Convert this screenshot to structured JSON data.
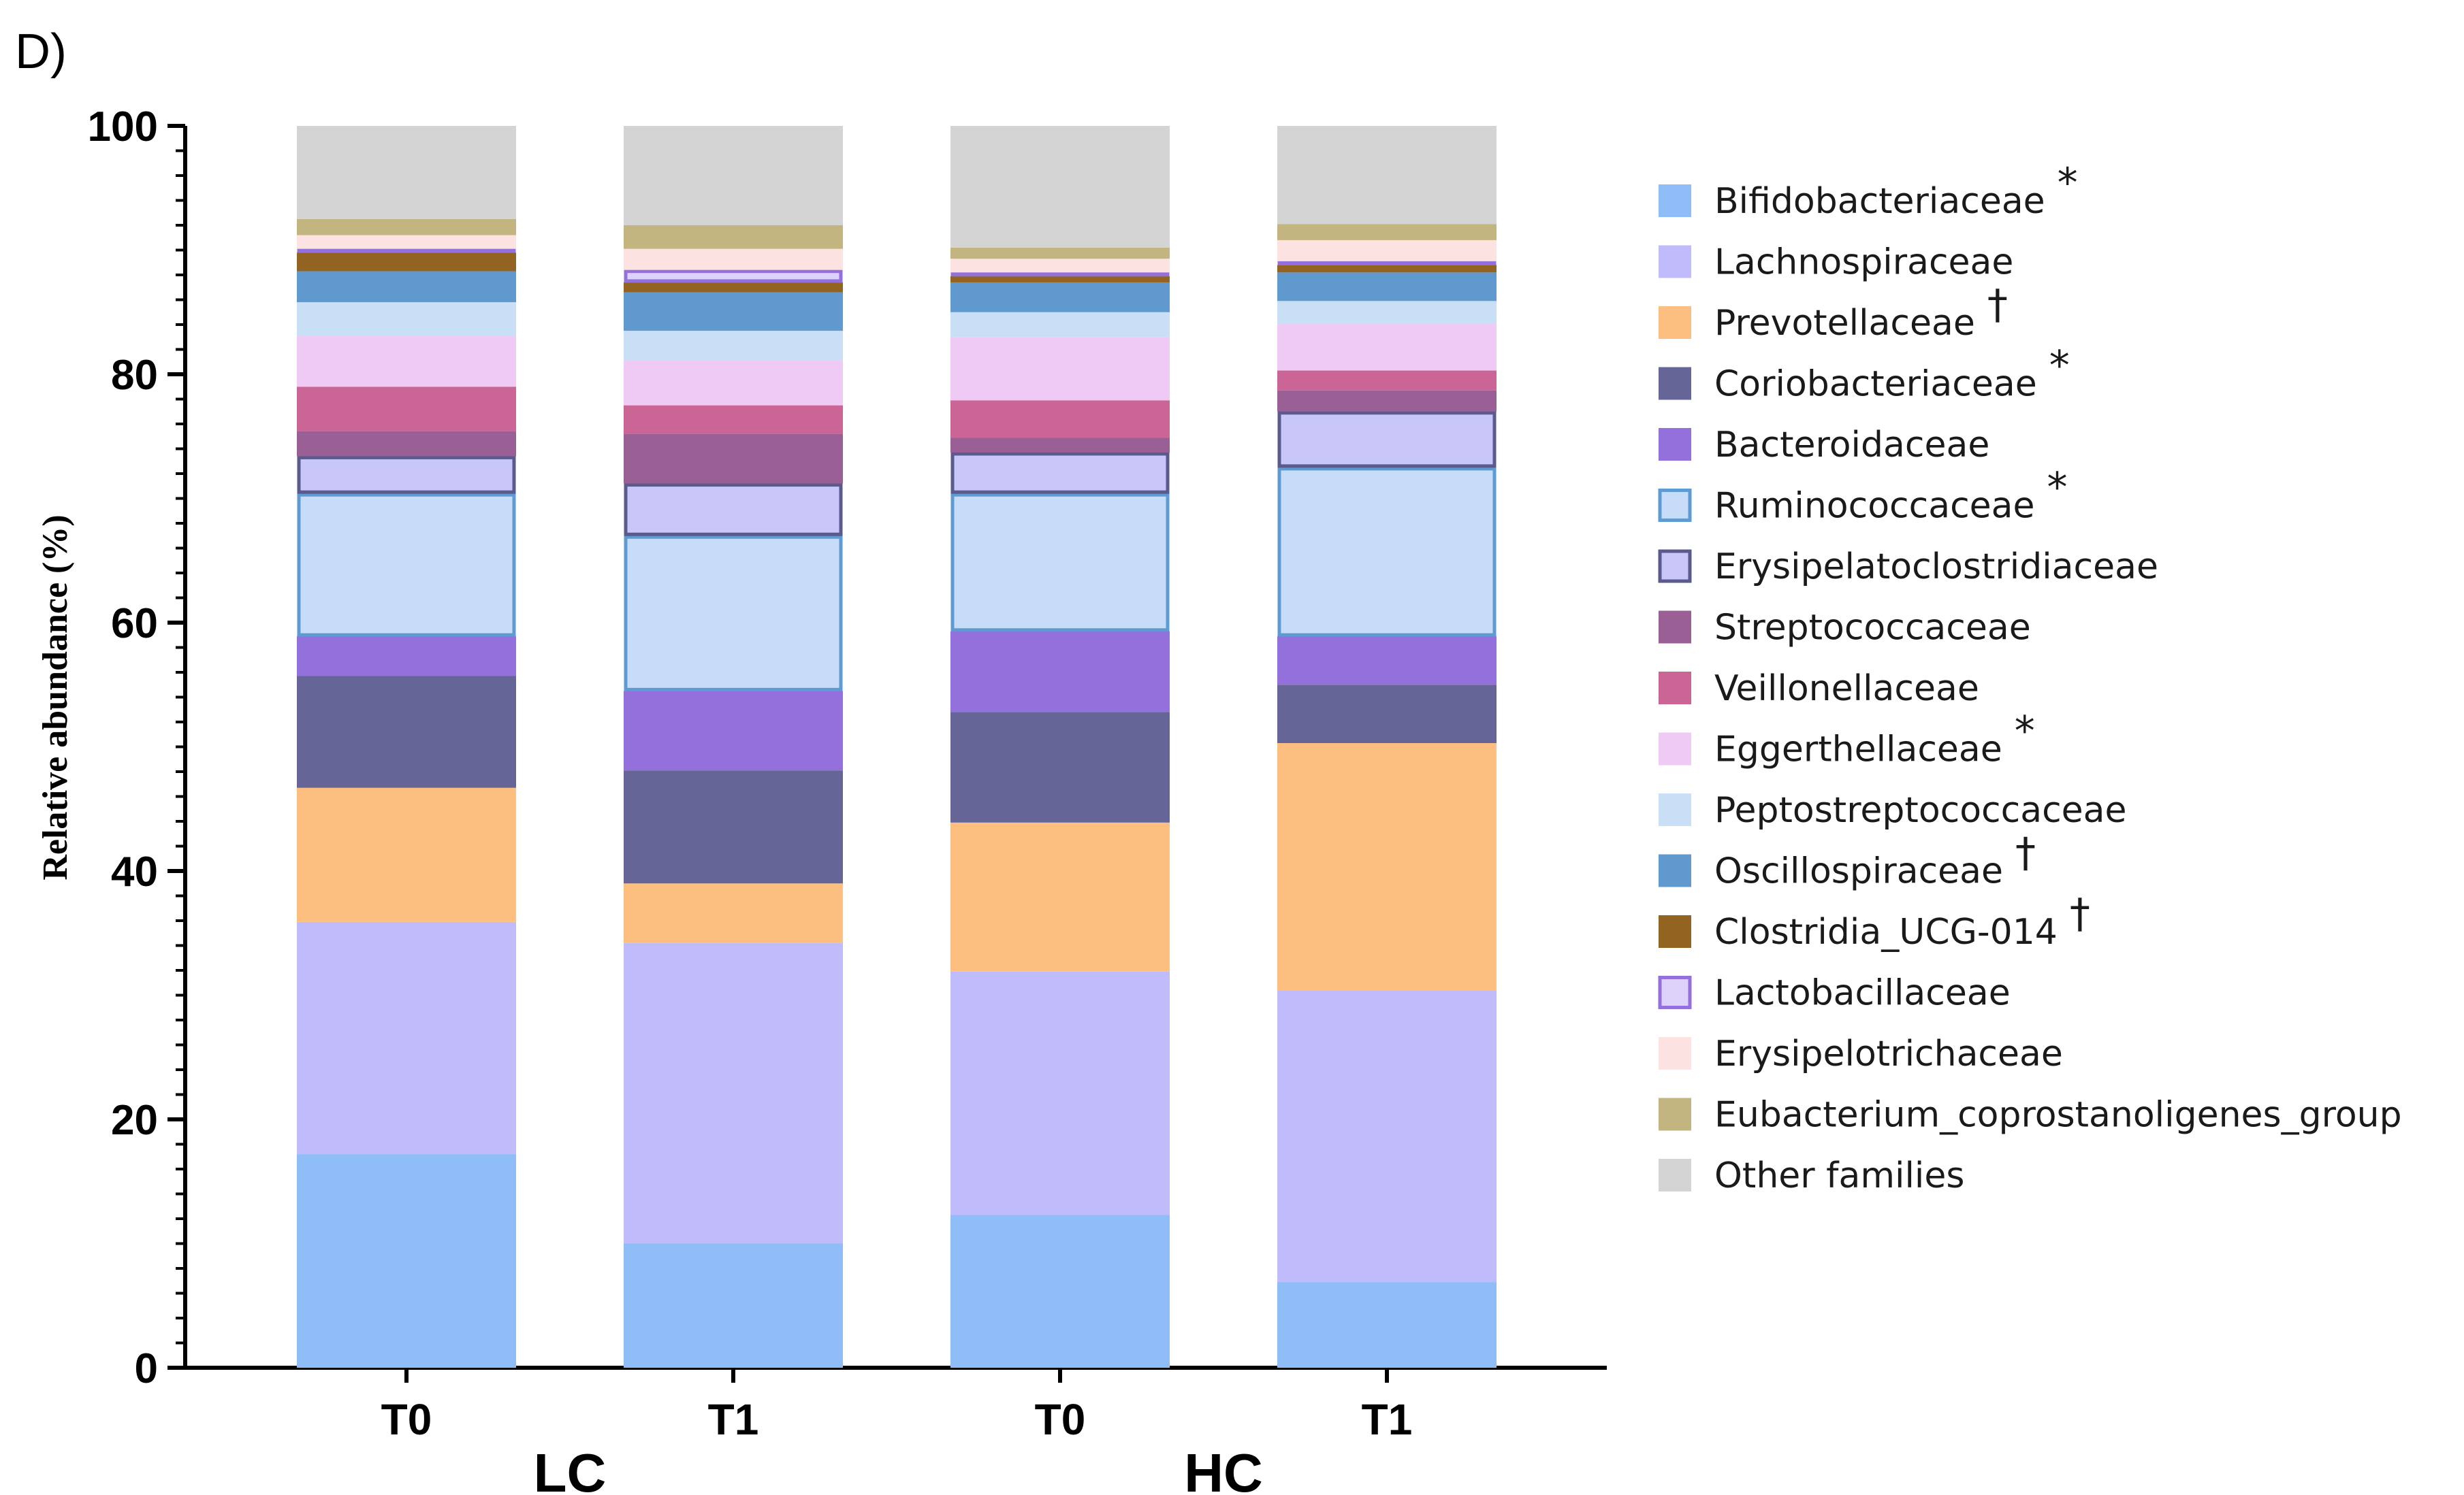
{
  "panel_label": "D)",
  "chart_data": {
    "type": "bar",
    "stacked": true,
    "title": "",
    "xlabel": "",
    "ylabel": "Relative abundance (%)",
    "ylim": [
      0,
      100
    ],
    "yticks": [
      0,
      20,
      40,
      60,
      80,
      100
    ],
    "grid": false,
    "legend_position": "right",
    "categories": [
      "T0",
      "T1",
      "T0",
      "T1"
    ],
    "groups": [
      {
        "label": "LC",
        "categories": [
          0,
          1
        ]
      },
      {
        "label": "HC",
        "categories": [
          2,
          3
        ]
      }
    ],
    "series": [
      {
        "name": "Bifidobacteriaceae",
        "mark": "*",
        "color": "#8fbdf7",
        "outlined": false,
        "values": [
          17.2,
          10.0,
          12.3,
          6.9
        ]
      },
      {
        "name": "Lachnospiraceae",
        "mark": "",
        "color": "#c0bcfc",
        "outlined": false,
        "values": [
          18.7,
          24.2,
          19.6,
          23.5
        ]
      },
      {
        "name": "Prevotellaceae",
        "mark": "†",
        "color": "#fdbf80",
        "outlined": false,
        "values": [
          10.8,
          4.8,
          12.0,
          19.9
        ]
      },
      {
        "name": "Coriobacteriaceae",
        "mark": "*",
        "color": "#656597",
        "outlined": false,
        "values": [
          9.0,
          9.1,
          8.9,
          4.7
        ]
      },
      {
        "name": "Bacteroidaceae",
        "mark": "",
        "color": "#9370dc",
        "outlined": false,
        "values": [
          3.2,
          6.4,
          6.5,
          3.9
        ]
      },
      {
        "name": "Ruminococcaceae",
        "mark": "*",
        "color": "#c6dcf8",
        "outlined": true,
        "outline": "#5f9bd3",
        "values": [
          11.5,
          12.5,
          11.1,
          13.6
        ]
      },
      {
        "name": "Erysipelatoclostridiaceae",
        "mark": "",
        "color": "#c9c6fa",
        "outlined": true,
        "outline": "#5a5a8c",
        "values": [
          3.0,
          4.2,
          3.3,
          4.5
        ]
      },
      {
        "name": "Streptococcaceae",
        "mark": "",
        "color": "#9a6096",
        "outlined": false,
        "values": [
          2.0,
          4.0,
          1.2,
          1.7
        ]
      },
      {
        "name": "Veillonellaceae",
        "mark": "",
        "color": "#ca6595",
        "outlined": false,
        "values": [
          3.6,
          2.3,
          3.0,
          1.6
        ]
      },
      {
        "name": "Eggerthellaceae",
        "mark": "*",
        "color": "#efcaf5",
        "outlined": false,
        "values": [
          4.1,
          3.6,
          5.1,
          3.8
        ]
      },
      {
        "name": "Peptostreptococcaceae",
        "mark": "",
        "color": "#c8dff6",
        "outlined": false,
        "values": [
          2.7,
          2.4,
          2.0,
          1.8
        ]
      },
      {
        "name": "Oscillospiraceae",
        "mark": "†",
        "color": "#6099cd",
        "outlined": false,
        "values": [
          2.5,
          3.1,
          2.4,
          2.3
        ]
      },
      {
        "name": "Clostridia_UCG-014",
        "mark": "†",
        "color": "#936322",
        "outlined": false,
        "values": [
          1.5,
          0.8,
          0.5,
          0.6
        ]
      },
      {
        "name": "Lactobacillaceae",
        "mark": "",
        "color": "#dcd2fa",
        "outlined": true,
        "outline": "#9370dc",
        "values": [
          0.3,
          1.0,
          0.3,
          0.3
        ]
      },
      {
        "name": "Erysipelotrichaceae",
        "mark": "",
        "color": "#fde2e2",
        "outlined": false,
        "values": [
          1.1,
          1.7,
          1.1,
          1.7
        ]
      },
      {
        "name": "Eubacterium_coprostanoligenes_group",
        "mark": "",
        "color": "#c3b57f",
        "outlined": false,
        "values": [
          1.3,
          1.9,
          0.9,
          1.3
        ]
      },
      {
        "name": "Other families",
        "mark": "",
        "color": "#d4d4d4",
        "outlined": false,
        "values": [
          7.5,
          8.0,
          9.8,
          7.9
        ]
      }
    ]
  }
}
